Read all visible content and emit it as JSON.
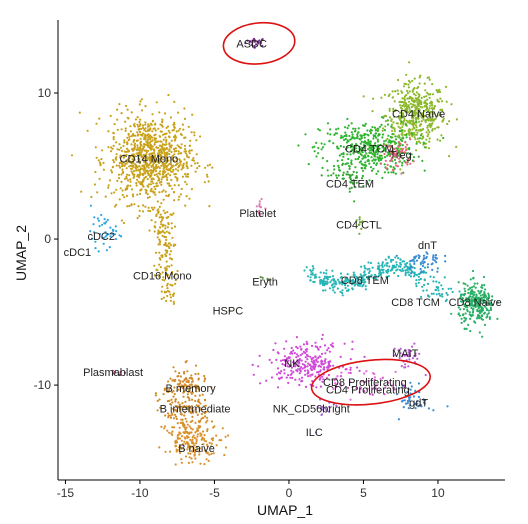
{
  "chart_data": {
    "type": "scatter",
    "xlabel": "UMAP_1",
    "ylabel": "UMAP_2",
    "xlim": [
      -15.5,
      14.5
    ],
    "ylim": [
      -16.5,
      15
    ],
    "x_ticks": [
      -15,
      -10,
      -5,
      0,
      5,
      10
    ],
    "y_ticks": [
      -10,
      0,
      10
    ],
    "grid": false,
    "clusters": [
      {
        "name": "ASDC",
        "color": "#7a2a8c",
        "cx": -2.2,
        "cy": 13.5,
        "sx": 0.35,
        "sy": 0.15,
        "n": 25,
        "label_xy": [
          -2.5,
          13.4
        ]
      },
      {
        "name": "CD4 Naive",
        "color": "#8cb82c",
        "cx": 8.5,
        "cy": 8.5,
        "sx": 1.0,
        "sy": 1.1,
        "n": 450,
        "label_xy": [
          8.7,
          8.6
        ]
      },
      {
        "name": "CD4 TCM",
        "color": "#2fb42f",
        "cx": 5.3,
        "cy": 6.2,
        "sx": 1.6,
        "sy": 0.9,
        "n": 420,
        "label_xy": [
          5.4,
          6.2
        ]
      },
      {
        "name": "Treg",
        "color": "#e8637a",
        "cx": 7.3,
        "cy": 5.8,
        "sx": 0.5,
        "sy": 0.5,
        "n": 60,
        "label_xy": [
          7.5,
          5.8
        ]
      },
      {
        "name": "CD4 TEM",
        "color": "#32a332",
        "cx": 4.0,
        "cy": 4.2,
        "sx": 0.6,
        "sy": 0.4,
        "n": 40,
        "label_xy": [
          4.1,
          3.8
        ]
      },
      {
        "name": "CD4 CTL",
        "color": "#6fa830",
        "cx": 4.8,
        "cy": 1.3,
        "sx": 0.15,
        "sy": 0.3,
        "n": 10,
        "label_xy": [
          4.7,
          1.0
        ]
      },
      {
        "name": "CD14 Mono",
        "color": "#c9a21b",
        "cx": -9.3,
        "cy": 5.5,
        "sx": 1.4,
        "sy": 1.5,
        "n": 900,
        "label_xy": [
          -9.4,
          5.5
        ]
      },
      {
        "name": "CD16 Mono",
        "color": "#c9a21b",
        "cx": -8.0,
        "cy": -1.5,
        "sx": 0.4,
        "sy": 1.8,
        "n": 160,
        "label_xy": [
          -8.5,
          -2.5
        ]
      },
      {
        "name": "cDC2",
        "color": "#2ea6e0",
        "cx": -12.3,
        "cy": 0.5,
        "sx": 0.5,
        "sy": 0.5,
        "n": 40,
        "label_xy": [
          -12.6,
          0.2
        ]
      },
      {
        "name": "cDC1",
        "color": "#2ea6e0",
        "cx": -13.0,
        "cy": -0.8,
        "sx": 0.15,
        "sy": 0.15,
        "n": 2,
        "label_xy": [
          -14.2,
          -0.9
        ]
      },
      {
        "name": "Platelet",
        "color": "#e07ab0",
        "cx": -2.0,
        "cy": 2.3,
        "sx": 0.15,
        "sy": 0.5,
        "n": 12,
        "label_xy": [
          -2.1,
          1.8
        ]
      },
      {
        "name": "Eryth",
        "color": "#5b8c3e",
        "cx": -1.6,
        "cy": -2.8,
        "sx": 0.2,
        "sy": 0.15,
        "n": 5,
        "label_xy": [
          -1.6,
          -2.9
        ]
      },
      {
        "name": "HSPC",
        "color": "#9a8a50",
        "cx": -4.0,
        "cy": -4.8,
        "sx": 0.1,
        "sy": 0.1,
        "n": 1,
        "label_xy": [
          -4.1,
          -4.9
        ]
      },
      {
        "name": "CD8 TEM",
        "color": "#27b5b5",
        "cx": 5.2,
        "cy": -2.5,
        "sx": 2.3,
        "sy": 0.5,
        "n": 320,
        "label_xy": [
          5.1,
          -2.8
        ]
      },
      {
        "name": "dnT",
        "color": "#3a8ad1",
        "cx": 9.0,
        "cy": -1.5,
        "sx": 0.6,
        "sy": 0.4,
        "n": 50,
        "label_xy": [
          9.3,
          -0.4
        ]
      },
      {
        "name": "CD8 TCM",
        "color": "#27b5b5",
        "cx": 10.0,
        "cy": -3.5,
        "sx": 0.6,
        "sy": 0.5,
        "n": 40,
        "label_xy": [
          8.5,
          -4.3
        ]
      },
      {
        "name": "CD8 Naive",
        "color": "#29b066",
        "cx": 12.6,
        "cy": -4.5,
        "sx": 0.6,
        "sy": 0.7,
        "n": 260,
        "label_xy": [
          12.5,
          -4.3
        ]
      },
      {
        "name": "NK",
        "color": "#d04ad8",
        "cx": 1.2,
        "cy": -8.5,
        "sx": 1.3,
        "sy": 0.7,
        "n": 260,
        "label_xy": [
          0.2,
          -8.5
        ]
      },
      {
        "name": "CD8 Proliferating",
        "color": "#e86ad8",
        "cx": 4.5,
        "cy": -9.8,
        "sx": 1.5,
        "sy": 0.5,
        "n": 30,
        "label_xy": [
          5.1,
          -9.8
        ]
      },
      {
        "name": "CD4 Proliferating",
        "color": "#c84fc0",
        "cx": 5.5,
        "cy": -10.3,
        "sx": 1.0,
        "sy": 0.4,
        "n": 20,
        "label_xy": [
          5.3,
          -10.3
        ]
      },
      {
        "name": "NK_CD56bright",
        "color": "#a76bd6",
        "cx": 2.5,
        "cy": -11.5,
        "sx": 0.6,
        "sy": 0.3,
        "n": 15,
        "label_xy": [
          1.5,
          -11.6
        ]
      },
      {
        "name": "ILC",
        "color": "#a76bd6",
        "cx": 1.7,
        "cy": -13.2,
        "sx": 0.1,
        "sy": 0.1,
        "n": 1,
        "label_xy": [
          1.7,
          -13.2
        ]
      },
      {
        "name": "MAIT",
        "color": "#b95fd3",
        "cx": 7.9,
        "cy": -8.1,
        "sx": 0.5,
        "sy": 0.4,
        "n": 40,
        "label_xy": [
          7.8,
          -7.8
        ]
      },
      {
        "name": "gdT",
        "color": "#3a8ad1",
        "cx": 8.5,
        "cy": -11.0,
        "sx": 0.5,
        "sy": 0.5,
        "n": 50,
        "label_xy": [
          8.7,
          -11.2
        ]
      },
      {
        "name": "Plasmablast",
        "color": "#a83268",
        "cx": -11.5,
        "cy": -9.1,
        "sx": 0.4,
        "sy": 0.1,
        "n": 6,
        "label_xy": [
          -11.8,
          -9.1
        ]
      },
      {
        "name": "B memory",
        "color": "#d18b2a",
        "cx": -7.0,
        "cy": -10.0,
        "sx": 0.7,
        "sy": 0.6,
        "n": 110,
        "label_xy": [
          -6.6,
          -10.2
        ]
      },
      {
        "name": "B intermediate",
        "color": "#d18b2a",
        "cx": -7.0,
        "cy": -11.8,
        "sx": 0.8,
        "sy": 0.6,
        "n": 110,
        "label_xy": [
          -6.3,
          -11.6
        ]
      },
      {
        "name": "B naive",
        "color": "#d9922c",
        "cx": -6.4,
        "cy": -13.8,
        "sx": 0.9,
        "sy": 0.7,
        "n": 180,
        "label_xy": [
          -6.2,
          -14.3
        ]
      }
    ],
    "annotations": [
      {
        "type": "ellipse-highlight",
        "color": "#dd1111",
        "center": [
          -2.0,
          13.4
        ],
        "radii": [
          2.4,
          1.4
        ]
      },
      {
        "type": "ellipse-highlight",
        "color": "#dd1111",
        "center": [
          5.5,
          -9.8
        ],
        "radii": [
          4.0,
          1.5
        ]
      }
    ]
  }
}
